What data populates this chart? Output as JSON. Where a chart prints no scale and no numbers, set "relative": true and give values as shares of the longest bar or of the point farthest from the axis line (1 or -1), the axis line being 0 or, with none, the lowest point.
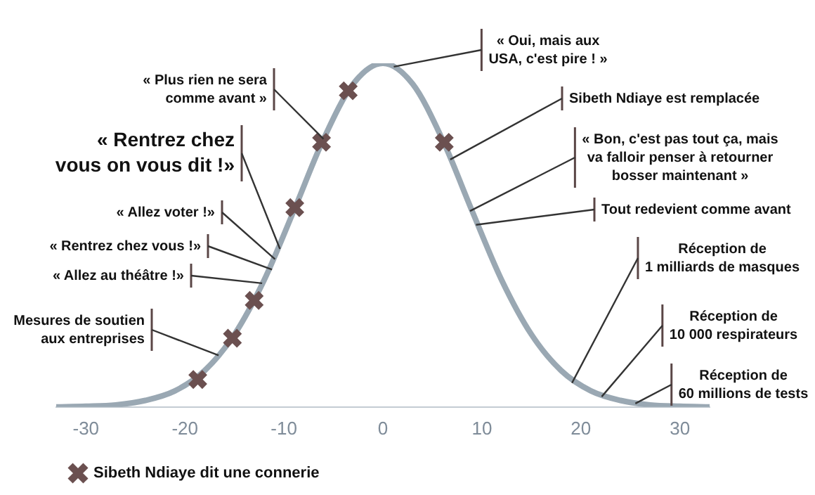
{
  "chart_data": {
    "type": "line",
    "relative": true,
    "xlim": [
      -33,
      33
    ],
    "xticks": [
      -30,
      -20,
      -10,
      0,
      10,
      20,
      30
    ],
    "tick_labels": "x",
    "grid": false,
    "legend": "bottom left",
    "series": [
      {
        "color": "#9aa8b3",
        "marker": "none",
        "x": [
          -33,
          -30,
          -27,
          -24,
          -21,
          -18,
          -15,
          -12,
          -9,
          -6,
          -3,
          0,
          3,
          6,
          9,
          12,
          15,
          18,
          21,
          24,
          27,
          30,
          33
        ],
        "values": [
          0,
          0.002,
          0.006,
          0.019,
          0.047,
          0.106,
          0.211,
          0.369,
          0.571,
          0.779,
          0.94,
          1,
          0.94,
          0.779,
          0.571,
          0.369,
          0.211,
          0.106,
          0.047,
          0.019,
          0.006,
          0.002,
          0
        ]
      },
      {
        "type": "scatter",
        "name": "Sibeth Ndiaye dit une connerie",
        "color": "#6b5050",
        "marker": "cross",
        "x": [
          -18.7,
          -15.2,
          -13,
          -8.9,
          -6.2,
          -3.5,
          6.2
        ],
        "values": [
          0.08,
          0.2,
          0.31,
          0.58,
          0.77,
          0.92,
          0.77
        ]
      }
    ],
    "annotations": [
      {
        "text": "Mesures de soutien\naux entreprises",
        "x": -16.6,
        "y": 0.15
      },
      {
        "text": "« Allez au théâtre !»",
        "x": -12.2,
        "y": 0.36
      },
      {
        "text": "« Rentrez chez vous !»",
        "x": -11.2,
        "y": 0.4
      },
      {
        "text": "« Allez voter !»",
        "x": -10.9,
        "y": 0.43
      },
      {
        "text": "« Rentrez chez\nvous on vous dit !»",
        "x": -10.4,
        "y": 0.46
      },
      {
        "text": "« Plus rien ne sera\ncomme avant »",
        "x": -6,
        "y": 0.78
      },
      {
        "text": "« Oui, mais aux\nUSA, c'est pire ! »",
        "x": 1.1,
        "y": 0.99
      },
      {
        "text": "Sibeth Ndiaye est remplacée",
        "x": 6.8,
        "y": 0.72
      },
      {
        "text": "« Bon, c'est pas tout ça, mais\nva falloir penser à retourner\nbosser maintenant »",
        "x": 8.8,
        "y": 0.57
      },
      {
        "text": "Tout redevient comme avant",
        "x": 9.4,
        "y": 0.53
      },
      {
        "text": "Réception de\n1 milliards de masques",
        "x": 19.1,
        "y": 0.07
      },
      {
        "text": "Réception de\n10 000 respirateurs",
        "x": 22.1,
        "y": 0.03
      },
      {
        "text": "Réception de\n60 millions de tests",
        "x": 25.5,
        "y": 0.01
      }
    ]
  }
}
